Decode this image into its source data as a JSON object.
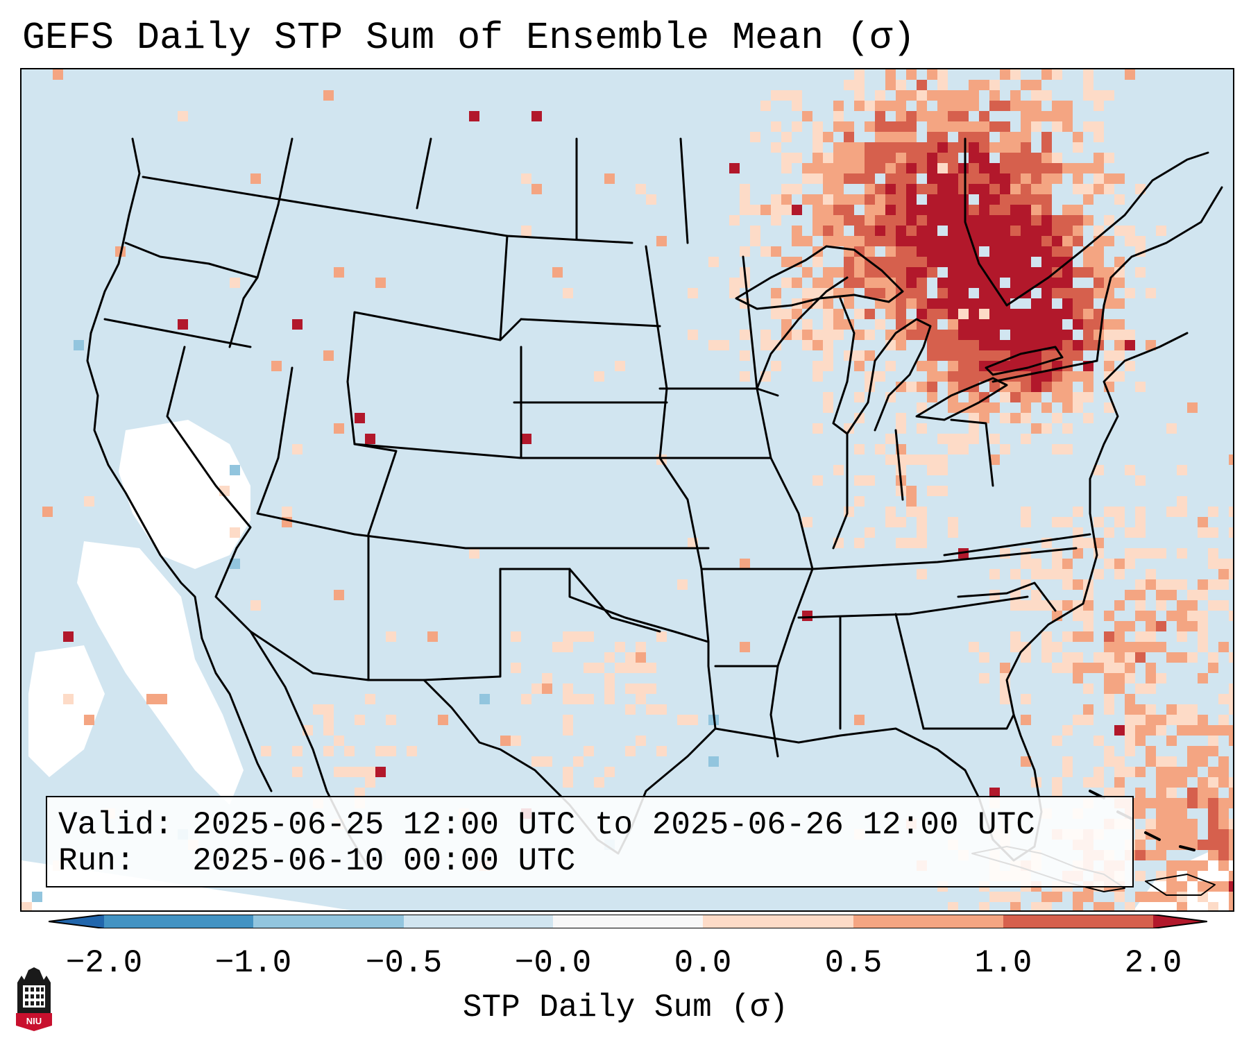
{
  "title": "GEFS Daily STP Sum of Ensemble Mean (σ)",
  "valid_label": "Valid:",
  "valid_value": "2025-06-25 12:00 UTC to 2025-06-26 12:00 UTC",
  "run_label": "Run:",
  "run_value": "2025-06-10 00:00 UTC",
  "colors": {
    "ocean_land_fill": "#d1e5f0",
    "missing": "#ffffff",
    "bins": [
      "#2166ac",
      "#4393c3",
      "#92c5de",
      "#d1e5f0",
      "#f7f7f7",
      "#fddbc7",
      "#f4a582",
      "#d6604d",
      "#b2182b"
    ]
  },
  "colorbar": {
    "label": "STP Daily Sum (σ)",
    "ticks": [
      "−2.0",
      "−1.0",
      "−0.5",
      "−0.0",
      "0.0",
      "0.5",
      "1.0",
      "2.0"
    ],
    "extend": "both"
  },
  "logo": {
    "text": "NIU",
    "color": "#c8102e",
    "icon": "niu-tower-icon"
  }
}
